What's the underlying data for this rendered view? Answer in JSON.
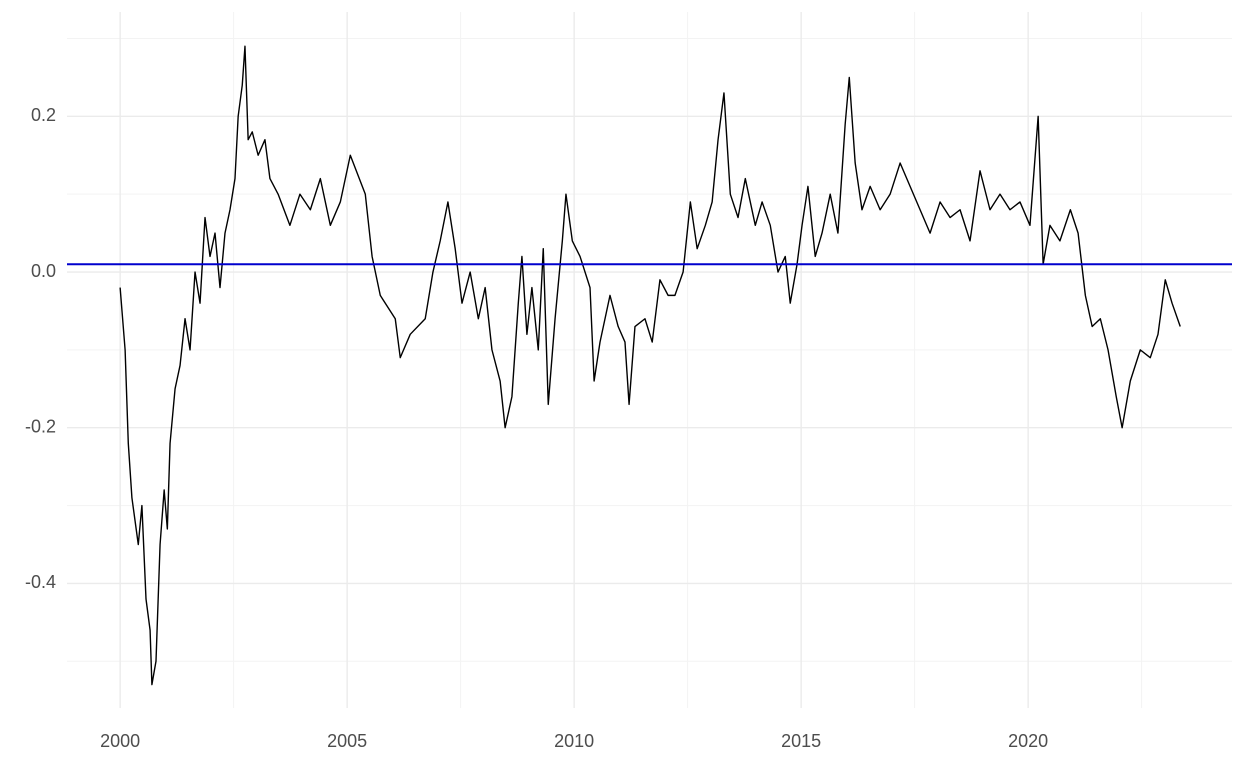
{
  "chart_data": {
    "type": "line",
    "x": [
      2000.0,
      2000.11,
      2000.18,
      2000.26,
      2000.4,
      2000.48,
      2000.57,
      2000.66,
      2000.7,
      2000.79,
      2000.88,
      2000.97,
      2001.04,
      2001.1,
      2001.21,
      2001.32,
      2001.43,
      2001.54,
      2001.65,
      2001.76,
      2001.87,
      2001.98,
      2002.09,
      2002.2,
      2002.31,
      2002.42,
      2002.53,
      2002.6,
      2002.69,
      2002.75,
      2002.82,
      2002.91,
      2003.04,
      2003.19,
      2003.3,
      2003.48,
      2003.74,
      2003.96,
      2004.19,
      2004.41,
      2004.63,
      2004.85,
      2005.07,
      2005.4,
      2005.55,
      2005.73,
      2006.06,
      2006.17,
      2006.39,
      2006.72,
      2006.89,
      2007.05,
      2007.22,
      2007.38,
      2007.53,
      2007.71,
      2007.89,
      2008.04,
      2008.19,
      2008.37,
      2008.48,
      2008.63,
      2008.77,
      2008.85,
      2008.96,
      2009.07,
      2009.21,
      2009.32,
      2009.43,
      2009.58,
      2009.74,
      2009.82,
      2009.96,
      2010.13,
      2010.35,
      2010.44,
      2010.57,
      2010.79,
      2010.97,
      2011.12,
      2011.21,
      2011.34,
      2011.56,
      2011.72,
      2011.89,
      2012.07,
      2012.22,
      2012.4,
      2012.56,
      2012.71,
      2012.89,
      2013.04,
      2013.17,
      2013.3,
      2013.44,
      2013.61,
      2013.77,
      2013.99,
      2014.14,
      2014.32,
      2014.49,
      2014.65,
      2014.76,
      2014.91,
      2015.02,
      2015.15,
      2015.31,
      2015.46,
      2015.64,
      2015.81,
      2015.97,
      2016.06,
      2016.19,
      2016.34,
      2016.52,
      2016.74,
      2016.96,
      2017.18,
      2017.4,
      2017.62,
      2017.84,
      2018.06,
      2018.28,
      2018.5,
      2018.72,
      2018.94,
      2019.16,
      2019.38,
      2019.6,
      2019.82,
      2020.04,
      2020.22,
      2020.33,
      2020.48,
      2020.7,
      2020.93,
      2021.1,
      2021.26,
      2021.41,
      2021.59,
      2021.76,
      2021.94,
      2022.07,
      2022.25,
      2022.47,
      2022.69,
      2022.86,
      2023.02,
      2023.17,
      2023.35
    ],
    "values": [
      -0.02,
      -0.1,
      -0.22,
      -0.29,
      -0.35,
      -0.3,
      -0.42,
      -0.46,
      -0.53,
      -0.5,
      -0.35,
      -0.28,
      -0.33,
      -0.22,
      -0.15,
      -0.12,
      -0.06,
      -0.1,
      0.0,
      -0.04,
      0.07,
      0.02,
      0.05,
      -0.02,
      0.05,
      0.08,
      0.12,
      0.2,
      0.24,
      0.29,
      0.17,
      0.18,
      0.15,
      0.17,
      0.12,
      0.1,
      0.06,
      0.1,
      0.08,
      0.12,
      0.06,
      0.09,
      0.15,
      0.1,
      0.02,
      -0.03,
      -0.06,
      -0.11,
      -0.08,
      -0.06,
      0.0,
      0.04,
      0.09,
      0.03,
      -0.04,
      0.0,
      -0.06,
      -0.02,
      -0.1,
      -0.14,
      -0.2,
      -0.16,
      -0.04,
      0.02,
      -0.08,
      -0.02,
      -0.1,
      0.03,
      -0.17,
      -0.06,
      0.04,
      0.1,
      0.04,
      0.02,
      -0.02,
      -0.14,
      -0.09,
      -0.03,
      -0.07,
      -0.09,
      -0.17,
      -0.07,
      -0.06,
      -0.09,
      -0.01,
      -0.03,
      -0.03,
      0.0,
      0.09,
      0.03,
      0.06,
      0.09,
      0.17,
      0.23,
      0.1,
      0.07,
      0.12,
      0.06,
      0.09,
      0.06,
      0.0,
      0.02,
      -0.04,
      0.01,
      0.06,
      0.11,
      0.02,
      0.05,
      0.1,
      0.05,
      0.19,
      0.25,
      0.14,
      0.08,
      0.11,
      0.08,
      0.1,
      0.14,
      0.11,
      0.08,
      0.05,
      0.09,
      0.07,
      0.08,
      0.04,
      0.13,
      0.08,
      0.1,
      0.08,
      0.09,
      0.06,
      0.2,
      0.01,
      0.06,
      0.04,
      0.08,
      0.05,
      -0.03,
      -0.07,
      -0.06,
      -0.1,
      -0.16,
      -0.2,
      -0.14,
      -0.1,
      -0.11,
      -0.08,
      -0.01,
      -0.04,
      -0.07
    ],
    "color": "#000000",
    "hline": 0.01,
    "hline_color": "#0000cd",
    "xlim": [
      1998.83,
      2024.49
    ],
    "ylim": [
      -0.56,
      0.334
    ],
    "xticks": [
      2000,
      2005,
      2010,
      2015,
      2020
    ],
    "yticks": [
      {
        "value": -0.4,
        "label": "-0.4"
      },
      {
        "value": -0.2,
        "label": "-0.2"
      },
      {
        "value": 0,
        "label": "0.0"
      },
      {
        "value": 0.2,
        "label": "0.2"
      }
    ],
    "grid": true
  }
}
